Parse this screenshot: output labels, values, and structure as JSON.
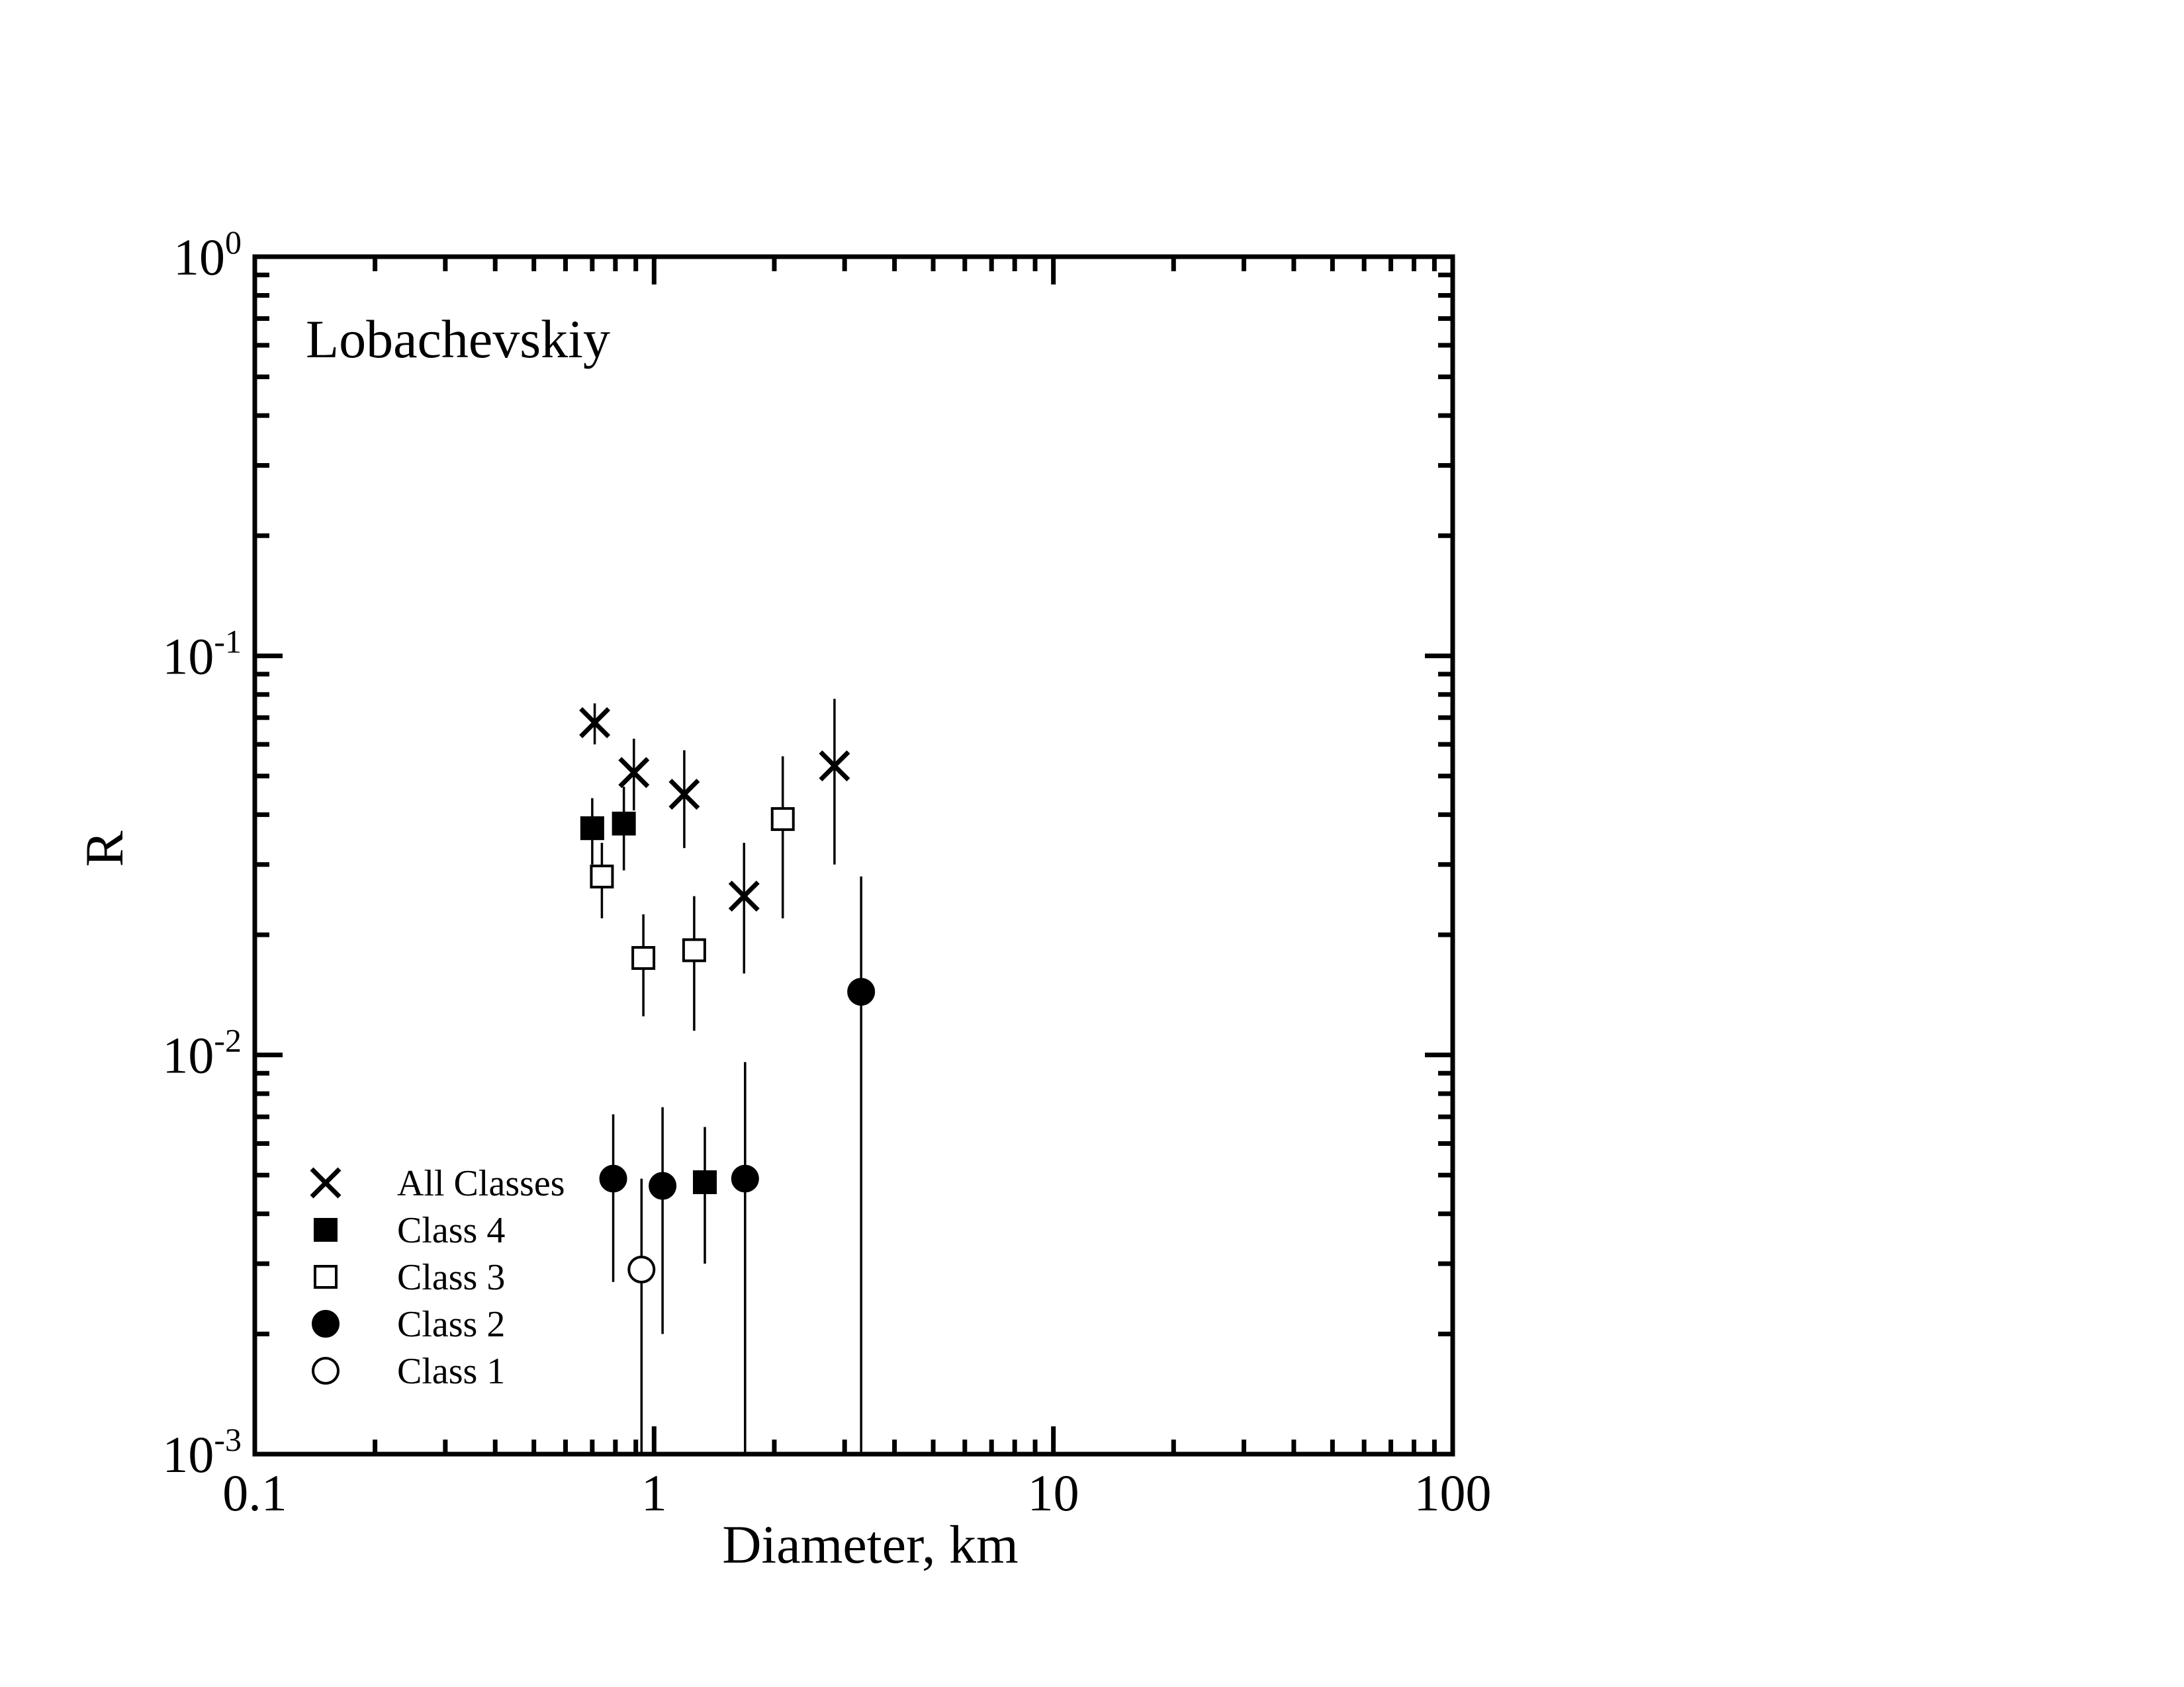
{
  "chart_data": {
    "type": "scatter",
    "title": "",
    "annotation": "Lobachevskiy",
    "xlabel": "Diameter, km",
    "ylabel": "R",
    "xscale": "log",
    "yscale": "log",
    "xlim": [
      0.1,
      100
    ],
    "ylim": [
      0.001,
      1
    ],
    "x_ticks": [
      {
        "value": 0.1,
        "label": "0.1"
      },
      {
        "value": 1,
        "label": "1"
      },
      {
        "value": 10,
        "label": "10"
      },
      {
        "value": 100,
        "label": "100"
      }
    ],
    "y_ticks": [
      {
        "value": 1,
        "base": "10",
        "exp": "0"
      },
      {
        "value": 0.1,
        "base": "10",
        "exp": "-1"
      },
      {
        "value": 0.01,
        "base": "10",
        "exp": "-2"
      },
      {
        "value": 0.001,
        "base": "10",
        "exp": "-3"
      }
    ],
    "legend_position": "bottom-left",
    "series": [
      {
        "name": "All Classes",
        "marker": "x",
        "points": [
          {
            "x": 0.71,
            "y": 0.068,
            "ylo": 0.06,
            "yhi": 0.076
          },
          {
            "x": 0.89,
            "y": 0.051,
            "ylo": 0.041,
            "yhi": 0.062
          },
          {
            "x": 1.19,
            "y": 0.045,
            "ylo": 0.033,
            "yhi": 0.058
          },
          {
            "x": 1.68,
            "y": 0.025,
            "ylo": 0.016,
            "yhi": 0.034
          },
          {
            "x": 2.83,
            "y": 0.053,
            "ylo": 0.03,
            "yhi": 0.078
          }
        ]
      },
      {
        "name": "Class 4",
        "marker": "filled-square",
        "points": [
          {
            "x": 0.7,
            "y": 0.037,
            "ylo": 0.03,
            "yhi": 0.044
          },
          {
            "x": 0.84,
            "y": 0.038,
            "ylo": 0.029,
            "yhi": 0.047
          },
          {
            "x": 1.34,
            "y": 0.0048,
            "ylo": 0.003,
            "yhi": 0.0066
          }
        ]
      },
      {
        "name": "Class 3",
        "marker": "open-square",
        "points": [
          {
            "x": 0.74,
            "y": 0.028,
            "ylo": 0.022,
            "yhi": 0.034
          },
          {
            "x": 0.94,
            "y": 0.0175,
            "ylo": 0.0125,
            "yhi": 0.0225
          },
          {
            "x": 1.26,
            "y": 0.0183,
            "ylo": 0.0115,
            "yhi": 0.025
          },
          {
            "x": 2.1,
            "y": 0.039,
            "ylo": 0.022,
            "yhi": 0.056
          }
        ]
      },
      {
        "name": "Class 2",
        "marker": "filled-circle",
        "points": [
          {
            "x": 0.79,
            "y": 0.0049,
            "ylo": 0.0027,
            "yhi": 0.0071
          },
          {
            "x": 1.05,
            "y": 0.0047,
            "ylo": 0.002,
            "yhi": 0.0074
          },
          {
            "x": 1.69,
            "y": 0.0049,
            "ylo": 0.001,
            "yhi": 0.0096
          },
          {
            "x": 3.3,
            "y": 0.0144,
            "ylo": 0.001,
            "yhi": 0.028
          }
        ]
      },
      {
        "name": "Class 1",
        "marker": "open-circle",
        "points": [
          {
            "x": 0.93,
            "y": 0.0029,
            "ylo": 0.001,
            "yhi": 0.0049
          }
        ]
      }
    ]
  }
}
